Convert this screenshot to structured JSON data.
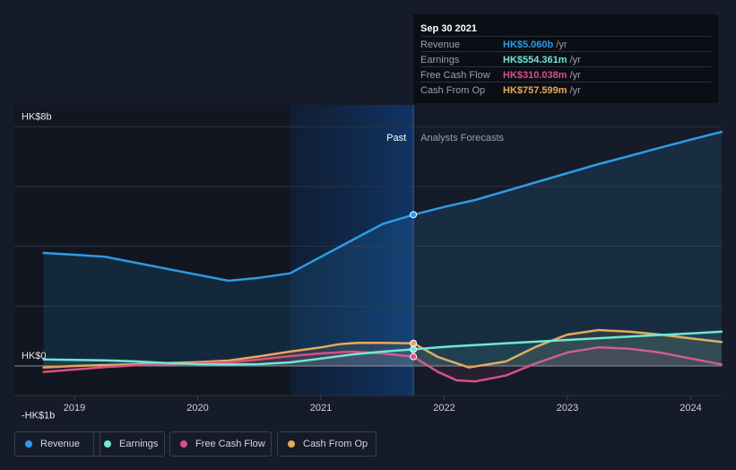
{
  "tooltip": {
    "date": "Sep 30 2021",
    "rows": [
      {
        "name": "Revenue",
        "value": "HK$5.060b",
        "unit": "/yr",
        "color": "#2e9be6"
      },
      {
        "name": "Earnings",
        "value": "HK$554.361m",
        "unit": "/yr",
        "color": "#6ee7d6"
      },
      {
        "name": "Free Cash Flow",
        "value": "HK$310.038m",
        "unit": "/yr",
        "color": "#d94f86"
      },
      {
        "name": "Cash From Op",
        "value": "HK$757.599m",
        "unit": "/yr",
        "color": "#e8a95a"
      }
    ]
  },
  "legend": [
    {
      "label": "Revenue",
      "color": "#2e9be6"
    },
    {
      "label": "Earnings",
      "color": "#6ee7d6"
    },
    {
      "label": "Free Cash Flow",
      "color": "#d94f86"
    },
    {
      "label": "Cash From Op",
      "color": "#e8a95a"
    }
  ],
  "chart_data": {
    "type": "line",
    "title": "",
    "xlabel": "",
    "ylabel": "",
    "unit": "HK$ billions",
    "ylim": [
      -1,
      8
    ],
    "xlim": [
      2018.7,
      2024.25
    ],
    "y_tick_labels": [
      {
        "value": 8,
        "label": "HK$8b"
      },
      {
        "value": 0,
        "label": "HK$0"
      },
      {
        "value": -1,
        "label": "-HK$1b"
      }
    ],
    "x_ticks": [
      2019,
      2020,
      2021,
      2022,
      2023,
      2024
    ],
    "past_label": "Past",
    "forecast_label": "Analysts Forecasts",
    "past_start": 2020.75,
    "divider": 2021.75,
    "series": [
      {
        "name": "Revenue",
        "color": "#2e9be6",
        "fill": true,
        "x": [
          2018.75,
          2019.0,
          2019.25,
          2019.5,
          2019.75,
          2020.0,
          2020.25,
          2020.5,
          2020.75,
          2021.0,
          2021.25,
          2021.5,
          2021.75,
          2022.0,
          2022.25,
          2022.5,
          2022.75,
          2023.0,
          2023.25,
          2023.5,
          2023.75,
          2024.0,
          2024.25
        ],
        "values": [
          3.78,
          3.72,
          3.65,
          3.45,
          3.25,
          3.05,
          2.85,
          2.95,
          3.1,
          3.65,
          4.2,
          4.75,
          5.06,
          5.32,
          5.55,
          5.85,
          6.15,
          6.45,
          6.75,
          7.02,
          7.3,
          7.57,
          7.83
        ]
      },
      {
        "name": "Earnings",
        "color": "#6ee7d6",
        "fill": true,
        "x": [
          2018.75,
          2019.0,
          2019.25,
          2019.5,
          2019.75,
          2020.0,
          2020.25,
          2020.5,
          2020.75,
          2021.0,
          2021.25,
          2021.5,
          2021.75,
          2022.0,
          2022.5,
          2023.0,
          2023.5,
          2024.0,
          2024.25
        ],
        "values": [
          0.22,
          0.2,
          0.19,
          0.15,
          0.1,
          0.06,
          0.05,
          0.06,
          0.12,
          0.25,
          0.38,
          0.48,
          0.554,
          0.64,
          0.76,
          0.87,
          0.98,
          1.09,
          1.15
        ]
      },
      {
        "name": "Free Cash Flow",
        "color": "#d94f86",
        "fill": true,
        "x": [
          2018.75,
          2019.0,
          2019.25,
          2019.5,
          2019.75,
          2020.0,
          2020.25,
          2020.5,
          2020.75,
          2021.0,
          2021.25,
          2021.5,
          2021.75,
          2021.95,
          2022.1,
          2022.25,
          2022.5,
          2022.75,
          2023.0,
          2023.25,
          2023.5,
          2023.75,
          2024.0,
          2024.25
        ],
        "values": [
          -0.2,
          -0.12,
          -0.04,
          0.02,
          0.05,
          0.08,
          0.12,
          0.22,
          0.33,
          0.42,
          0.48,
          0.42,
          0.31,
          -0.2,
          -0.48,
          -0.52,
          -0.32,
          0.1,
          0.45,
          0.62,
          0.58,
          0.45,
          0.25,
          0.05
        ]
      },
      {
        "name": "Cash From Op",
        "color": "#e8a95a",
        "fill": true,
        "x": [
          2018.75,
          2019.0,
          2019.25,
          2019.5,
          2019.75,
          2020.0,
          2020.25,
          2020.5,
          2020.75,
          2021.0,
          2021.15,
          2021.3,
          2021.5,
          2021.75,
          2021.95,
          2022.2,
          2022.5,
          2022.75,
          2023.0,
          2023.25,
          2023.5,
          2023.75,
          2024.0,
          2024.25
        ],
        "values": [
          -0.05,
          0.0,
          0.03,
          0.06,
          0.1,
          0.13,
          0.18,
          0.32,
          0.48,
          0.62,
          0.73,
          0.77,
          0.77,
          0.76,
          0.3,
          -0.05,
          0.15,
          0.65,
          1.05,
          1.2,
          1.15,
          1.05,
          0.92,
          0.8
        ]
      }
    ],
    "highlight_x": 2021.75,
    "highlight_values": [
      5.06,
      0.554,
      0.31,
      0.758
    ]
  }
}
